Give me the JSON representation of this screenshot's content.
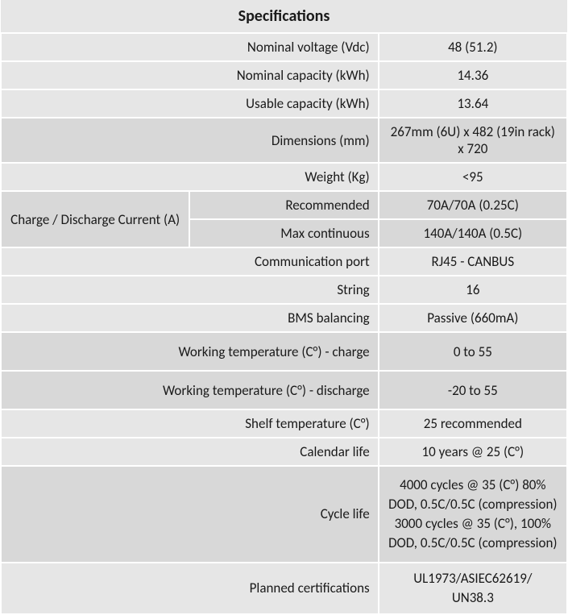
{
  "title": "Specifications",
  "colors": {
    "row_light": "#e6e6e6",
    "row_dark": "#d8d8d8",
    "border": "#ffffff",
    "text": "#1a1a1a"
  },
  "rows": {
    "nominal_voltage": {
      "label": "Nominal voltage (Vdc)",
      "value": "48 (51.2)"
    },
    "nominal_capacity": {
      "label": "Nominal capacity (kWh)",
      "value": "14.36"
    },
    "usable_capacity": {
      "label": "Usable capacity (kWh)",
      "value": "13.64"
    },
    "dimensions": {
      "label": "Dimensions (mm)",
      "value": "267mm (6U) x 482 (19in rack) x 720"
    },
    "weight": {
      "label": "Weight (Kg)",
      "value": "<95"
    },
    "charge_group": {
      "label": "Charge / Discharge Current (A)"
    },
    "recommended": {
      "label": "Recommended",
      "value": "70A/70A (0.25C)"
    },
    "max_continuous": {
      "label": "Max continuous",
      "value": "140A/140A (0.5C)"
    },
    "comm_port": {
      "label": "Communication port",
      "value": "RJ45 - CANBUS"
    },
    "string": {
      "label": "String",
      "value": "16"
    },
    "bms": {
      "label": "BMS balancing",
      "value": "Passive (660mA)"
    },
    "work_temp_charge": {
      "label": "Working temperature (C°) - charge",
      "value": "0 to 55"
    },
    "work_temp_disch": {
      "label": "Working temperature (C°) - discharge",
      "value": "-20 to 55"
    },
    "shelf_temp": {
      "label": "Shelf temperature (C°)",
      "value": "25 recommended"
    },
    "calendar_life": {
      "label": "Calendar life",
      "value": "10 years @ 25 (C°)"
    },
    "cycle_life": {
      "label": "Cycle life",
      "value": "4000 cycles @ 35 (C°) 80% DOD, 0.5C/0.5C (compression)\n3000 cycles @ 35 (C°), 100% DOD, 0.5C/0.5C (compression)"
    },
    "planned_cert": {
      "label": "Planned certifications",
      "value": "UL1973/ASIEC62619/\nUN38.3"
    }
  }
}
